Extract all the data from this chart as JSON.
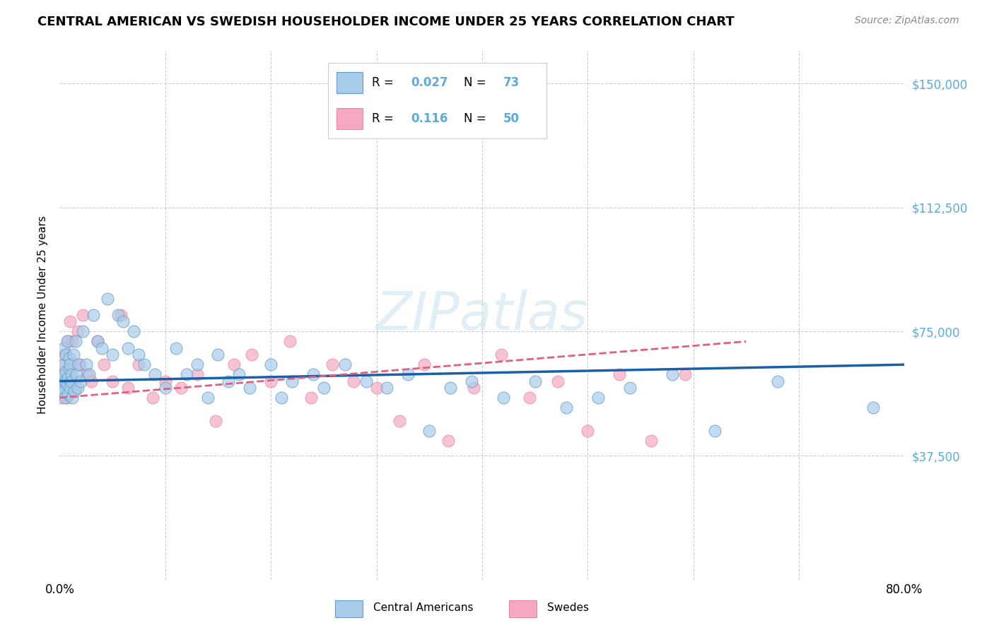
{
  "title": "CENTRAL AMERICAN VS SWEDISH HOUSEHOLDER INCOME UNDER 25 YEARS CORRELATION CHART",
  "source": "Source: ZipAtlas.com",
  "ylabel": "Householder Income Under 25 years",
  "xmin": 0.0,
  "xmax": 0.8,
  "ymin": 0,
  "ymax": 160000,
  "watermark": "ZIPatlas",
  "blue_scatter": "#A8CCE8",
  "blue_edge": "#6699CC",
  "pink_scatter": "#F5A8C0",
  "pink_edge": "#E888A8",
  "blue_line_color": "#1B5FA8",
  "pink_line_color": "#E06080",
  "grid_color": "#cccccc",
  "right_tick_color": "#5aabdb",
  "ca_x": [
    0.001,
    0.002,
    0.003,
    0.003,
    0.004,
    0.004,
    0.005,
    0.005,
    0.006,
    0.006,
    0.007,
    0.007,
    0.008,
    0.008,
    0.009,
    0.009,
    0.01,
    0.01,
    0.011,
    0.011,
    0.012,
    0.013,
    0.014,
    0.015,
    0.016,
    0.017,
    0.018,
    0.02,
    0.022,
    0.025,
    0.028,
    0.032,
    0.036,
    0.04,
    0.045,
    0.05,
    0.055,
    0.06,
    0.065,
    0.07,
    0.075,
    0.08,
    0.09,
    0.1,
    0.11,
    0.12,
    0.13,
    0.14,
    0.15,
    0.16,
    0.17,
    0.18,
    0.2,
    0.21,
    0.22,
    0.24,
    0.25,
    0.27,
    0.29,
    0.31,
    0.33,
    0.35,
    0.37,
    0.39,
    0.42,
    0.45,
    0.48,
    0.51,
    0.54,
    0.58,
    0.62,
    0.68,
    0.77
  ],
  "ca_y": [
    60000,
    58000,
    62000,
    65000,
    57000,
    70000,
    60000,
    55000,
    63000,
    68000,
    59000,
    72000,
    61000,
    56000,
    64000,
    67000,
    58000,
    65000,
    62000,
    60000,
    55000,
    68000,
    57000,
    72000,
    62000,
    58000,
    65000,
    60000,
    75000,
    65000,
    62000,
    80000,
    72000,
    70000,
    85000,
    68000,
    80000,
    78000,
    70000,
    75000,
    68000,
    65000,
    62000,
    58000,
    70000,
    62000,
    65000,
    55000,
    68000,
    60000,
    62000,
    58000,
    65000,
    55000,
    60000,
    62000,
    58000,
    65000,
    60000,
    58000,
    62000,
    45000,
    58000,
    60000,
    55000,
    60000,
    52000,
    55000,
    58000,
    62000,
    45000,
    60000,
    52000
  ],
  "sw_x": [
    0.001,
    0.002,
    0.003,
    0.003,
    0.004,
    0.005,
    0.006,
    0.007,
    0.008,
    0.009,
    0.01,
    0.011,
    0.012,
    0.013,
    0.015,
    0.017,
    0.019,
    0.022,
    0.026,
    0.03,
    0.036,
    0.042,
    0.05,
    0.058,
    0.065,
    0.075,
    0.088,
    0.1,
    0.115,
    0.13,
    0.148,
    0.165,
    0.182,
    0.2,
    0.218,
    0.238,
    0.258,
    0.278,
    0.3,
    0.322,
    0.345,
    0.368,
    0.392,
    0.418,
    0.445,
    0.472,
    0.5,
    0.53,
    0.56,
    0.592
  ],
  "sw_y": [
    60000,
    55000,
    62000,
    65000,
    58000,
    68000,
    60000,
    55000,
    72000,
    62000,
    78000,
    60000,
    72000,
    65000,
    58000,
    75000,
    65000,
    80000,
    62000,
    60000,
    72000,
    65000,
    60000,
    80000,
    58000,
    65000,
    55000,
    60000,
    58000,
    62000,
    48000,
    65000,
    68000,
    60000,
    72000,
    55000,
    65000,
    60000,
    58000,
    48000,
    65000,
    42000,
    58000,
    68000,
    55000,
    60000,
    45000,
    62000,
    42000,
    62000
  ]
}
